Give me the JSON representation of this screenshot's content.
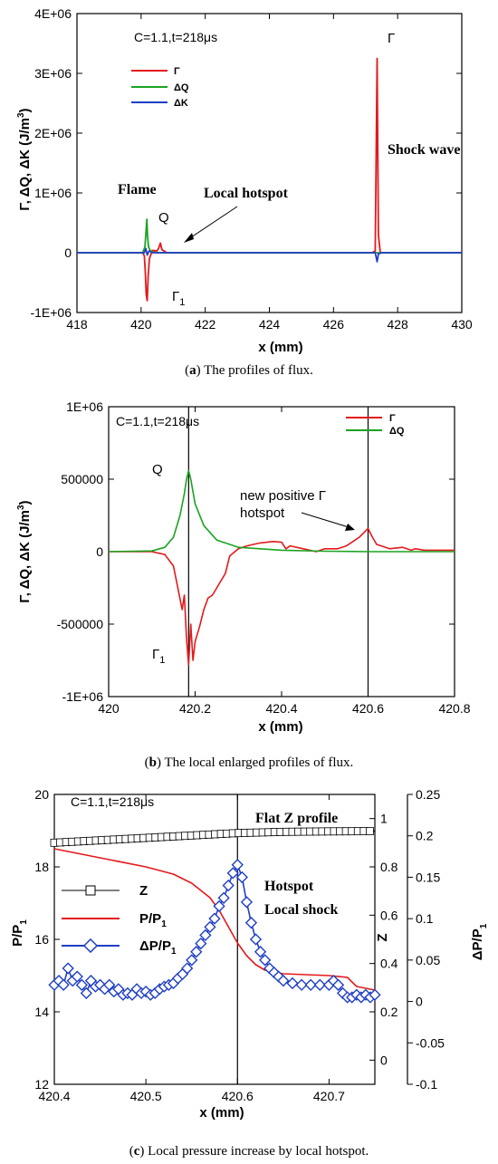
{
  "chart_data": [
    {
      "type": "line",
      "caption_label": "a",
      "caption_text": ") The profiles of flux.",
      "xlabel": "x (mm)",
      "ylabel": "Γ, ΔQ, ΔK (J/m",
      "ylabel_sup": "3",
      "ylabel_end": ")",
      "xlim": [
        418,
        430
      ],
      "ylim": [
        -1000000,
        4000000
      ],
      "x_ticks": [
        "418",
        "420",
        "422",
        "424",
        "426",
        "428",
        "430"
      ],
      "y_ticks": [
        "-1E+06",
        "0",
        "1E+06",
        "2E+06",
        "3E+06",
        "4E+06"
      ],
      "condition_label": "C=1.1,t=218μs",
      "legend": [
        "Γ",
        "ΔQ",
        "ΔK"
      ],
      "annotations": {
        "gamma_peak": "Γ",
        "shock": "Shock wave",
        "flame": "Flame",
        "q": "Q",
        "hotspot": "Local hotspot",
        "gamma1": "Γ",
        "gamma1_sub": "1"
      },
      "series": [
        {
          "name": "Γ",
          "color": "#e31a1c",
          "x": [
            418.0,
            420.05,
            420.1,
            420.13,
            420.16,
            420.19,
            420.22,
            420.26,
            420.35,
            420.5,
            420.55,
            420.6,
            420.65,
            420.8,
            421.5,
            422.5,
            424.0,
            426.0,
            427.2,
            427.3,
            427.36,
            427.4,
            427.46,
            427.55,
            428.0,
            430.0
          ],
          "y": [
            0,
            0,
            -50000,
            -300000,
            -700000,
            -800000,
            -400000,
            -100000,
            40000,
            30000,
            80000,
            160000,
            50000,
            0,
            0,
            0,
            0,
            0,
            0,
            30000,
            3250000,
            300000,
            0,
            0,
            0,
            0
          ]
        },
        {
          "name": "ΔQ",
          "color": "#1aa321",
          "x": [
            418.0,
            420.05,
            420.12,
            420.16,
            420.18,
            420.2,
            420.23,
            420.3,
            420.5,
            430.0
          ],
          "y": [
            0,
            0,
            100000,
            400000,
            560000,
            300000,
            100000,
            20000,
            0,
            0
          ]
        },
        {
          "name": "ΔK",
          "color": "#1f3fc4",
          "x": [
            418.0,
            420.1,
            420.15,
            420.19,
            420.25,
            420.35,
            427.3,
            427.36,
            427.4,
            427.5,
            430.0
          ],
          "y": [
            0,
            0,
            70000,
            -40000,
            30000,
            0,
            0,
            -150000,
            -20000,
            0,
            0
          ]
        }
      ]
    },
    {
      "type": "line",
      "caption_label": "b",
      "caption_text": ") The local enlarged profiles of flux.",
      "xlabel": "x (mm)",
      "ylabel": "Γ, ΔQ, ΔK (J/m",
      "ylabel_sup": "3",
      "ylabel_end": ")",
      "xlim": [
        420,
        420.8
      ],
      "ylim": [
        -1000000,
        1000000
      ],
      "x_ticks": [
        "420",
        "420.2",
        "420.4",
        "420.6",
        "420.8"
      ],
      "y_ticks": [
        "-1E+06",
        "-500000",
        "0",
        "500000",
        "1E+06"
      ],
      "condition_label": "C=1.1,t=218μs",
      "legend": [
        "Γ",
        "ΔQ"
      ],
      "vlines": [
        420.185,
        420.6
      ],
      "annotations": {
        "q": "Q",
        "gamma1": "Γ",
        "gamma1_sub": "1",
        "hotspot_line1": "new positive Γ",
        "hotspot_line2": "hotspot"
      },
      "series": [
        {
          "name": "Γ",
          "color": "#e31a1c",
          "x": [
            420.0,
            420.1,
            420.13,
            420.15,
            420.16,
            420.17,
            420.175,
            420.18,
            420.185,
            420.19,
            420.195,
            420.2,
            420.21,
            420.22,
            420.23,
            420.24,
            420.25,
            420.27,
            420.28,
            420.3,
            420.32,
            420.35,
            420.38,
            420.4,
            420.41,
            420.42,
            420.45,
            420.48,
            420.5,
            420.53,
            420.55,
            420.56,
            420.57,
            420.58,
            420.59,
            420.6,
            420.61,
            420.62,
            420.65,
            420.68,
            420.7,
            420.71,
            420.73,
            420.76,
            420.8
          ],
          "y": [
            0,
            0,
            -20000,
            -100000,
            -250000,
            -400000,
            -300000,
            -600000,
            -780000,
            -500000,
            -750000,
            -620000,
            -520000,
            -400000,
            -320000,
            -300000,
            -250000,
            -150000,
            -30000,
            20000,
            40000,
            60000,
            70000,
            65000,
            20000,
            40000,
            20000,
            0,
            20000,
            20000,
            40000,
            60000,
            80000,
            100000,
            130000,
            160000,
            100000,
            50000,
            20000,
            30000,
            10000,
            20000,
            10000,
            10000,
            10000
          ]
        },
        {
          "name": "ΔQ",
          "color": "#1aa321",
          "x": [
            420.0,
            420.1,
            420.13,
            420.15,
            420.165,
            420.175,
            420.18,
            420.185,
            420.19,
            420.2,
            420.22,
            420.25,
            420.3,
            420.4,
            420.5,
            420.6,
            420.8
          ],
          "y": [
            0,
            5000,
            30000,
            100000,
            250000,
            400000,
            500000,
            560000,
            500000,
            330000,
            180000,
            80000,
            30000,
            10000,
            3000,
            0,
            0
          ]
        }
      ]
    },
    {
      "type": "line",
      "caption_label": "c",
      "caption_text": ") Local pressure increase by local hotspot.",
      "xlabel": "x (mm)",
      "ylabel": "P/P",
      "ylabel_sub": "1",
      "ylabel_right1": "Z",
      "ylabel_right2": "ΔP/P",
      "ylabel_right2_sub": "1",
      "xlim": [
        420.4,
        420.75
      ],
      "ylim": [
        12,
        20
      ],
      "y2lim": [
        -0.1,
        1.1
      ],
      "y3lim": [
        -0.1,
        0.25
      ],
      "x_ticks": [
        "420.4",
        "420.5",
        "420.6",
        "420.7"
      ],
      "y_ticks": [
        "12",
        "14",
        "16",
        "18",
        "20"
      ],
      "y2_ticks": [
        "0",
        "0.2",
        "0.4",
        "0.6",
        "0.8",
        "1"
      ],
      "y3_ticks": [
        "-0.1",
        "-0.05",
        "0",
        "0.05",
        "0.1",
        "0.15",
        "0.2",
        "0.25"
      ],
      "condition_label": "C=1.1,t=218μs",
      "legend": [
        {
          "label": "Z"
        },
        {
          "label": "P/P",
          "sub": "1"
        },
        {
          "label": "ΔP/P",
          "sub": "1"
        }
      ],
      "vlines": [
        420.6
      ],
      "annotations": {
        "flatz": "Flat Z profile",
        "hotspot": "Hotspot",
        "localshock": "Local shock"
      },
      "series": [
        {
          "name": "Z",
          "axis": "y2",
          "color": "#000000",
          "x": [
            420.4,
            420.45,
            420.5,
            420.55,
            420.6,
            420.65,
            420.7,
            420.75
          ],
          "y": [
            0.9,
            0.91,
            0.92,
            0.93,
            0.94,
            0.945,
            0.947,
            0.948
          ]
        },
        {
          "name": "P/P1",
          "axis": "y",
          "color": "#e31a1c",
          "x": [
            420.4,
            420.43,
            420.46,
            420.5,
            420.53,
            420.55,
            420.57,
            420.58,
            420.59,
            420.6,
            420.61,
            420.62,
            420.63,
            420.65,
            420.7,
            420.72,
            420.73,
            420.75
          ],
          "y": [
            18.5,
            18.35,
            18.2,
            18.0,
            17.8,
            17.55,
            17.15,
            16.8,
            16.35,
            15.9,
            15.55,
            15.3,
            15.15,
            15.05,
            15.0,
            14.95,
            14.7,
            14.6
          ]
        },
        {
          "name": "ΔP/P1",
          "axis": "y3",
          "color": "#1f3fc4",
          "x": [
            420.4,
            420.405,
            420.41,
            420.415,
            420.42,
            420.425,
            420.43,
            420.435,
            420.44,
            420.445,
            420.45,
            420.455,
            420.46,
            420.465,
            420.47,
            420.475,
            420.48,
            420.485,
            420.49,
            420.495,
            420.5,
            420.505,
            420.51,
            420.515,
            420.52,
            420.525,
            420.53,
            420.535,
            420.54,
            420.545,
            420.55,
            420.555,
            420.56,
            420.565,
            420.57,
            420.575,
            420.58,
            420.585,
            420.59,
            420.595,
            420.6,
            420.605,
            420.61,
            420.615,
            420.62,
            420.625,
            420.63,
            420.635,
            420.64,
            420.645,
            420.65,
            420.66,
            420.67,
            420.68,
            420.69,
            420.7,
            420.705,
            420.71,
            420.715,
            420.72,
            420.725,
            420.73,
            420.735,
            420.74,
            420.745,
            420.75
          ],
          "y": [
            0.02,
            0.025,
            0.02,
            0.04,
            0.025,
            0.03,
            0.02,
            0.01,
            0.025,
            0.018,
            0.02,
            0.015,
            0.02,
            0.012,
            0.015,
            0.008,
            0.01,
            0.008,
            0.015,
            0.01,
            0.012,
            0.008,
            0.01,
            0.015,
            0.018,
            0.02,
            0.022,
            0.028,
            0.033,
            0.04,
            0.05,
            0.06,
            0.07,
            0.08,
            0.09,
            0.1,
            0.115,
            0.125,
            0.14,
            0.155,
            0.165,
            0.15,
            0.12,
            0.095,
            0.075,
            0.06,
            0.05,
            0.04,
            0.035,
            0.03,
            0.025,
            0.022,
            0.02,
            0.02,
            0.02,
            0.02,
            0.025,
            0.02,
            0.01,
            0.005,
            0.005,
            0.008,
            0.005,
            0.008,
            0.005,
            0.008
          ]
        }
      ]
    }
  ]
}
